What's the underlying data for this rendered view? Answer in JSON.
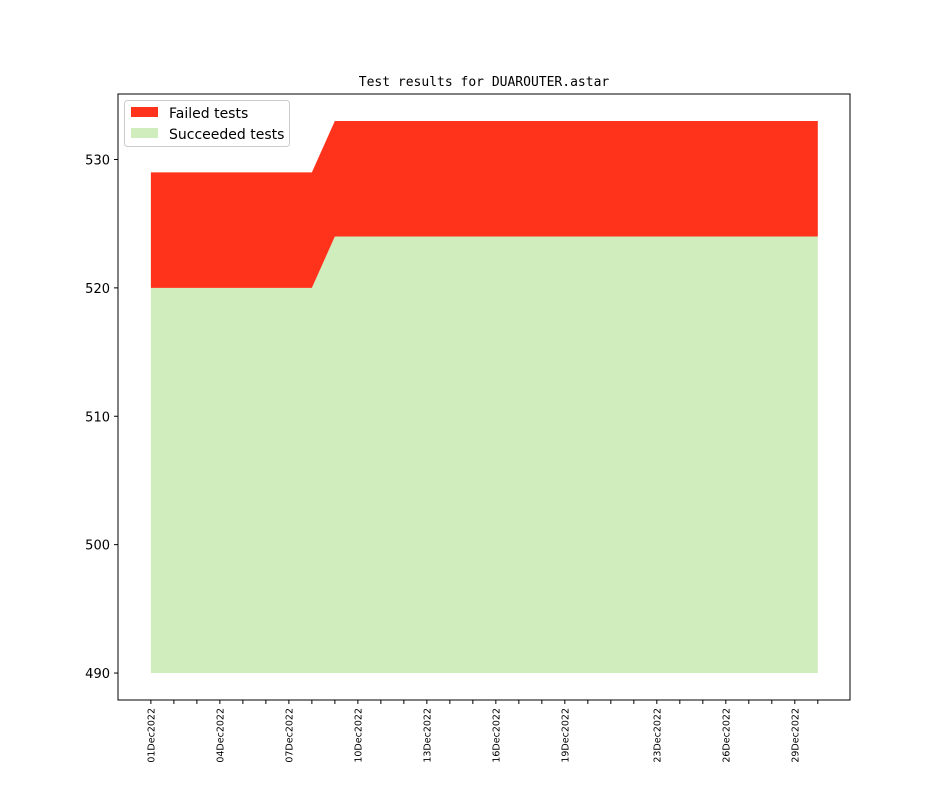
{
  "chart_data": {
    "type": "area",
    "title": "Test results for DUAROUTER.astar",
    "xlabel": "",
    "ylabel": "",
    "x": [
      "01Dec2022",
      "02Dec2022",
      "03Dec2022",
      "04Dec2022",
      "05Dec2022",
      "06Dec2022",
      "07Dec2022",
      "08Dec2022",
      "09Dec2022",
      "10Dec2022",
      "11Dec2022",
      "12Dec2022",
      "13Dec2022",
      "14Dec2022",
      "15Dec2022",
      "16Dec2022",
      "17Dec2022",
      "18Dec2022",
      "19Dec2022",
      "20Dec2022",
      "21Dec2022",
      "22Dec2022",
      "23Dec2022",
      "24Dec2022",
      "25Dec2022",
      "26Dec2022",
      "27Dec2022",
      "28Dec2022",
      "29Dec2022",
      "30Dec2022"
    ],
    "x_tick_labels": [
      "01Dec2022",
      "04Dec2022",
      "07Dec2022",
      "10Dec2022",
      "13Dec2022",
      "16Dec2022",
      "19Dec2022",
      "23Dec2022",
      "26Dec2022",
      "29Dec2022"
    ],
    "x_tick_label_days": [
      0,
      3,
      6,
      9,
      12,
      15,
      18,
      22,
      25,
      28
    ],
    "y_ticks": [
      490,
      500,
      510,
      520,
      530
    ],
    "ylim": [
      487.9,
      535.1
    ],
    "xlim_days": [
      -1.43,
      30.4
    ],
    "baseline": 490,
    "series": [
      {
        "name": "Succeeded tests",
        "color": "#d0edbe",
        "values": [
          520,
          520,
          520,
          520,
          520,
          520,
          520,
          520,
          524,
          524,
          524,
          524,
          524,
          524,
          524,
          524,
          524,
          524,
          524,
          524,
          524,
          524,
          524,
          524,
          524,
          524,
          524,
          524,
          524,
          524
        ]
      },
      {
        "name": "Failed tests",
        "color": "#ff321b",
        "values": [
          9,
          9,
          9,
          9,
          9,
          9,
          9,
          9,
          9,
          9,
          9,
          9,
          9,
          9,
          9,
          9,
          9,
          9,
          9,
          9,
          9,
          9,
          9,
          9,
          9,
          9,
          9,
          9,
          9,
          9
        ]
      }
    ],
    "legend": {
      "position": "top-left",
      "entries": [
        "Failed tests",
        "Succeeded tests"
      ]
    },
    "grid": false
  }
}
